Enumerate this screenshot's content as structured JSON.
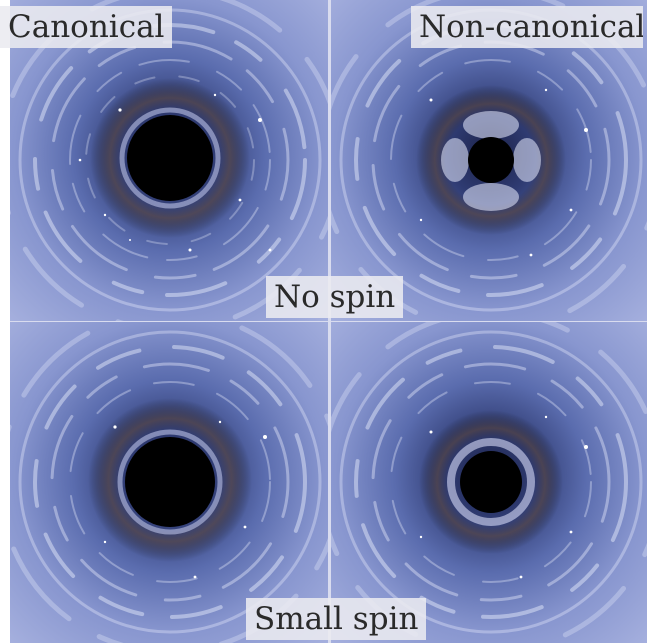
{
  "labels": {
    "canonical": "Canonical",
    "non_canonical": "Non-canonical",
    "no_spin": "No spin",
    "small_spin": "Small spin"
  },
  "panels": [
    {
      "id": "canonical-no-spin",
      "shadow": "circle"
    },
    {
      "id": "non-canonical-no-spin",
      "shadow": "cusped"
    },
    {
      "id": "canonical-small-spin",
      "shadow": "circle"
    },
    {
      "id": "non-canonical-small-spin",
      "shadow": "ringed"
    }
  ],
  "colors": {
    "sky": "#6d7fbd",
    "sky_dark": "#2b3566",
    "shadow": "#000000",
    "swirl": "#e8ecff"
  }
}
